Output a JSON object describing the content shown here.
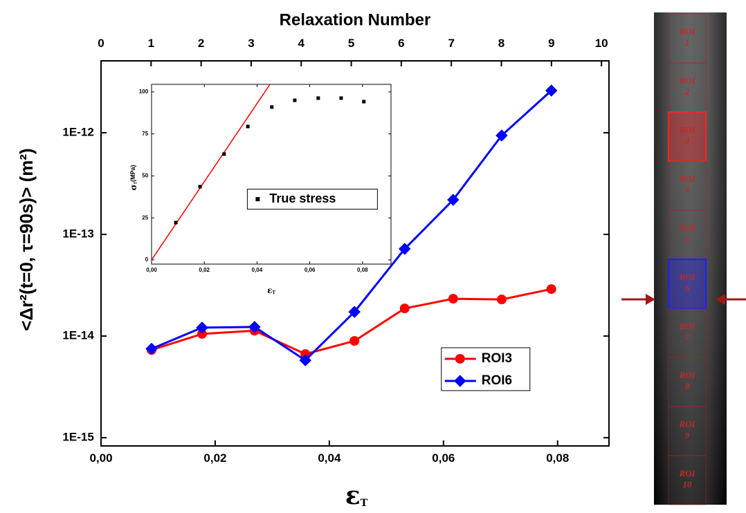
{
  "chart_data": [
    {
      "type": "line",
      "x2_label": "Relaxation Number",
      "x_label": {
        "symbol": "ε",
        "subscript": "T"
      },
      "y_label": "<Δr²(t=0, τ=90s)> (m²)",
      "yscale": "log",
      "xlim": [
        0,
        0.089
      ],
      "ylim": [
        8.3e-16,
        5.1e-12
      ],
      "x2lim": [
        0,
        10.15
      ],
      "xticks": [
        {
          "value": 0,
          "label": "0,00"
        },
        {
          "value": 0.02,
          "label": "0,02"
        },
        {
          "value": 0.04,
          "label": "0,04"
        },
        {
          "value": 0.06,
          "label": "0,06"
        },
        {
          "value": 0.08,
          "label": "0,08"
        }
      ],
      "yticks": [
        {
          "value": 1e-15,
          "label": "1E-15"
        },
        {
          "value": 1e-14,
          "label": "1E-14"
        },
        {
          "value": 1e-13,
          "label": "1E-13"
        },
        {
          "value": 1e-12,
          "label": "1E-12"
        }
      ],
      "x2ticks": [
        0,
        1,
        2,
        3,
        4,
        5,
        6,
        7,
        8,
        9,
        10
      ],
      "x": [
        0.00885,
        0.0177,
        0.0269,
        0.0358,
        0.0444,
        0.0532,
        0.0617,
        0.0702,
        0.0789
      ],
      "series": [
        {
          "name": "ROI3",
          "color": "#ff0000",
          "marker": "circle",
          "values": [
            7.3e-15,
            1.05e-14,
            1.13e-14,
            6.65e-15,
            8.96e-15,
            1.87e-14,
            2.33e-14,
            2.29e-14,
            2.9e-14
          ]
        },
        {
          "name": "ROI6",
          "color": "#0000ff",
          "marker": "diamond",
          "values": [
            7.5e-15,
            1.21e-14,
            1.23e-14,
            5.78e-15,
            1.73e-14,
            7.2e-14,
            2.19e-13,
            9.4e-13,
            2.6e-12
          ]
        }
      ],
      "legend": "lower right"
    },
    {
      "type": "scatter",
      "x_label": {
        "symbol": "ε",
        "subscript": "T"
      },
      "y_label": {
        "symbol": "σ",
        "subscript": "T",
        "unit": "(MPa)"
      },
      "xlim": [
        0,
        0.0908
      ],
      "ylim": [
        -2.5,
        104.5
      ],
      "xticks": [
        {
          "value": 0,
          "label": "0,00"
        },
        {
          "value": 0.02,
          "label": "0,02"
        },
        {
          "value": 0.04,
          "label": "0,04"
        },
        {
          "value": 0.06,
          "label": "0,06"
        },
        {
          "value": 0.08,
          "label": "0,08"
        }
      ],
      "yticks": [
        0,
        25,
        50,
        75,
        100
      ],
      "x": [
        0.0092,
        0.0184,
        0.0275,
        0.0365,
        0.0456,
        0.0543,
        0.0632,
        0.0719,
        0.0805
      ],
      "series": [
        {
          "name": "True stress",
          "color": "#000000",
          "marker": "square",
          "values": [
            22.2,
            43.6,
            63,
            79.4,
            91,
            95,
            96.3,
            96.3,
            94.2
          ]
        }
      ],
      "fit": {
        "color": "#ff0000",
        "x": [
          0,
          0.0449
        ],
        "values": [
          0,
          104.5
        ]
      },
      "legend": "center right"
    }
  ],
  "image": {
    "rois": [
      {
        "lines": [
          "ROI",
          "1"
        ]
      },
      {
        "lines": [
          "ROI",
          "2"
        ]
      },
      {
        "lines": [
          "ROI",
          "3"
        ],
        "highlight": "#ff2020"
      },
      {
        "lines": [
          "ROI",
          "4"
        ]
      },
      {
        "lines": [
          "ROI",
          "5"
        ]
      },
      {
        "lines": [
          "ROI",
          "6"
        ],
        "highlight": "#2020ff"
      },
      {
        "lines": [
          "ROI",
          "7"
        ]
      },
      {
        "lines": [
          "ROI",
          "8"
        ]
      },
      {
        "lines": [
          "ROI",
          "9"
        ]
      },
      {
        "lines": [
          "ROI",
          "10"
        ]
      }
    ]
  }
}
